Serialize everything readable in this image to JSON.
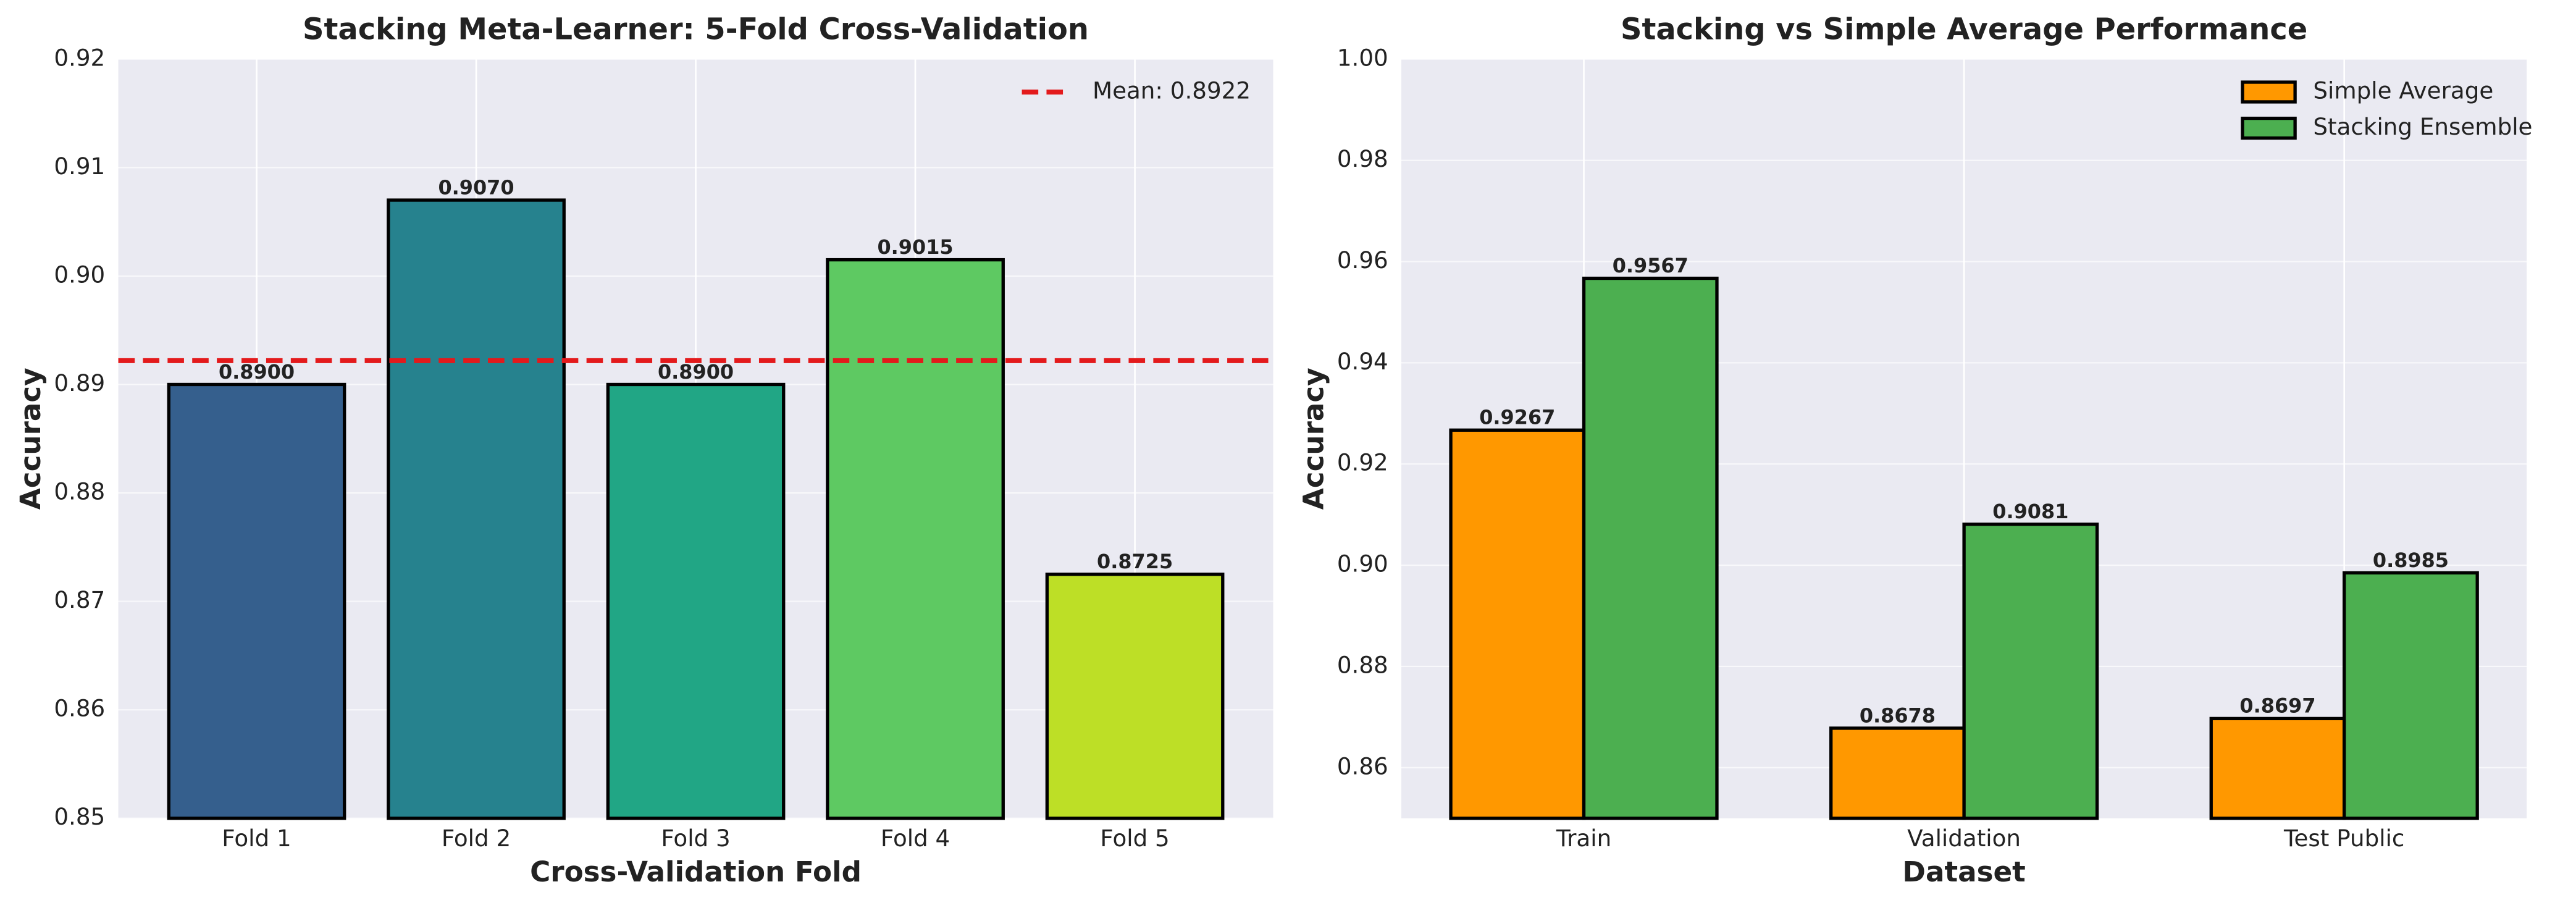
{
  "chart_data": [
    {
      "type": "bar",
      "title": "Stacking Meta-Learner: 5-Fold Cross-Validation",
      "xlabel": "Cross-Validation Fold",
      "ylabel": "Accuracy",
      "categories": [
        "Fold 1",
        "Fold 2",
        "Fold 3",
        "Fold 4",
        "Fold 5"
      ],
      "values": [
        0.89,
        0.907,
        0.89,
        0.9015,
        0.8725
      ],
      "value_labels": [
        "0.8900",
        "0.9070",
        "0.8900",
        "0.9015",
        "0.8725"
      ],
      "colors": [
        "#355f8d",
        "#26828e",
        "#21a685",
        "#5ec962",
        "#bddf26"
      ],
      "ylim": [
        0.85,
        0.92
      ],
      "yticks": [
        0.85,
        0.86,
        0.87,
        0.88,
        0.89,
        {
          "value": 0.9,
          "label": "0.90"
        },
        0.91,
        0.92
      ],
      "hline": {
        "value": 0.8922,
        "label": "Mean: 0.8922",
        "color": "#e31a1c"
      },
      "legend": "upper right",
      "grid": true
    },
    {
      "type": "bar",
      "title": "Stacking vs Simple Average Performance",
      "xlabel": "Dataset",
      "ylabel": "Accuracy",
      "categories": [
        "Train",
        "Validation",
        "Test Public"
      ],
      "series": [
        {
          "name": "Simple Average",
          "color": "#ff9800",
          "values": [
            0.9267,
            0.8678,
            0.8697
          ]
        },
        {
          "name": "Stacking Ensemble",
          "color": "#4caf50",
          "values": [
            0.9567,
            0.9081,
            0.8985
          ]
        }
      ],
      "ylim": [
        0.85,
        1.0
      ],
      "yticks": [
        0.86,
        0.88,
        {
          "value": 0.9,
          "label": "0.90"
        },
        0.92,
        0.94,
        0.96,
        0.98,
        {
          "value": 1.0,
          "label": "1.00"
        }
      ],
      "legend": "upper right",
      "grid": true
    }
  ]
}
